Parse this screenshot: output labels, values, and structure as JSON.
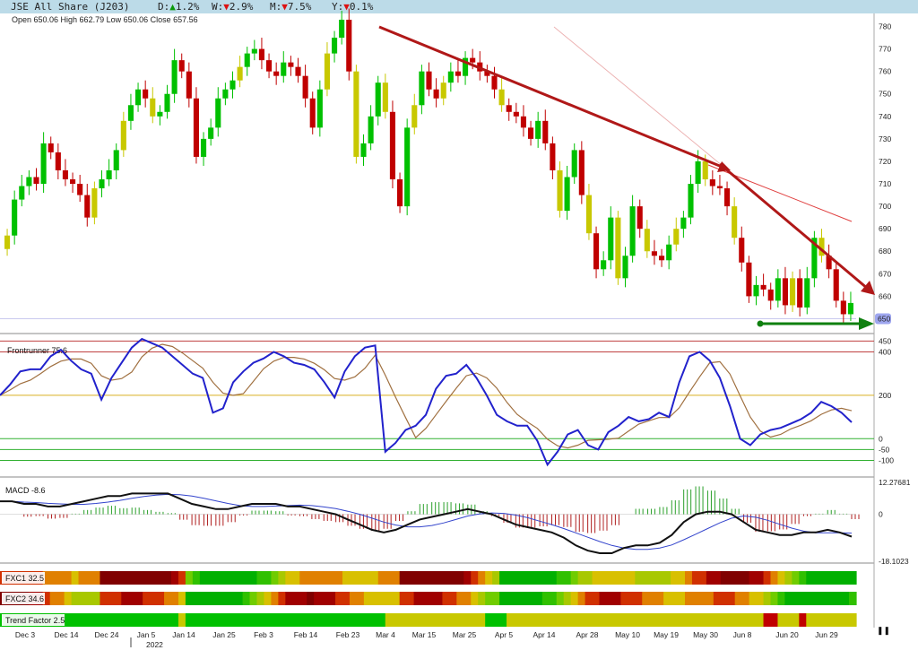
{
  "header": {
    "symbol": "JSE All Share (J203)",
    "day": {
      "label": "D:",
      "arrow": "▲",
      "value": "1.2%"
    },
    "week": {
      "label": "W:",
      "arrow": "▼",
      "value": "2.9%"
    },
    "month": {
      "label": "M:",
      "arrow": "▼",
      "value": "7.5%"
    },
    "year": {
      "label": "Y:",
      "arrow": "▼",
      "value": "0.1%"
    }
  },
  "ohlc": "Open 650.06  High 662.79  Low 650.06  Close 657.56",
  "colors": {
    "up": "#00c000",
    "down": "#c00000",
    "neutral": "#c8c800",
    "trend": "#b01818",
    "support": "#108010",
    "blueline": "#2222cc",
    "brownline": "#a07040"
  },
  "chart_data": [
    {
      "type": "candlestick",
      "title": "JSE All Share (J203)",
      "y_ticks": [
        650,
        660,
        670,
        680,
        690,
        700,
        710,
        720,
        730,
        740,
        750,
        760,
        770,
        780
      ],
      "ylim": [
        645,
        783
      ],
      "current_value_label": "650",
      "x_ticks": [
        "Dec 3",
        "Dec 14",
        "Dec 24",
        "Jan 5",
        "Jan 14",
        "Jan 25",
        "Feb 3",
        "Feb 14",
        "Feb 23",
        "Mar 4",
        "Mar 15",
        "Mar 25",
        "Apr 5",
        "Apr 14",
        "Apr 28",
        "May 10",
        "May 19",
        "May 30",
        "Jun 8",
        "Jun 20",
        "Jun 29"
      ],
      "year_label": "2022",
      "close": [
        687,
        703,
        709,
        713,
        710,
        728,
        724,
        716,
        712,
        710,
        705,
        695,
        708,
        712,
        716,
        725,
        738,
        745,
        752,
        748,
        740,
        742,
        750,
        765,
        760,
        748,
        722,
        730,
        735,
        748,
        752,
        756,
        762,
        768,
        770,
        765,
        760,
        758,
        764,
        762,
        758,
        748,
        735,
        752,
        768,
        775,
        783,
        760,
        722,
        728,
        740,
        755,
        742,
        712,
        700,
        735,
        745,
        760,
        752,
        748,
        755,
        760,
        758,
        766,
        764,
        760,
        758,
        752,
        745,
        742,
        740,
        735,
        730,
        738,
        728,
        716,
        698,
        713,
        725,
        705,
        688,
        672,
        676,
        695,
        668,
        678,
        700,
        690,
        680,
        678,
        676,
        683,
        690,
        695,
        710,
        720,
        712,
        709,
        708,
        700,
        686,
        675,
        660,
        665,
        663,
        658,
        668,
        656,
        668,
        655,
        668,
        686,
        678,
        672,
        658,
        652,
        657
      ],
      "mark": "candles colored green (up), red (down), yellow (neutral); red downtrend arrows; green support arrow at 650"
    },
    {
      "type": "line",
      "title": "Frontrunner 75.6",
      "y_ticks": [
        450,
        400,
        200,
        0,
        -50,
        -100
      ],
      "ylim": [
        -160,
        460
      ],
      "series": [
        {
          "name": "Frontrunner",
          "values": [
            200,
            250,
            310,
            320,
            320,
            380,
            410,
            360,
            320,
            300,
            180,
            280,
            350,
            420,
            460,
            440,
            420,
            380,
            340,
            300,
            280,
            120,
            140,
            260,
            310,
            350,
            370,
            400,
            380,
            350,
            340,
            320,
            260,
            190,
            310,
            380,
            420,
            430,
            -60,
            -20,
            40,
            60,
            110,
            230,
            290,
            300,
            340,
            280,
            200,
            110,
            80,
            60,
            60,
            -10,
            -120,
            -60,
            20,
            40,
            -30,
            -50,
            30,
            60,
            100,
            80,
            90,
            120,
            100,
            260,
            380,
            400,
            360,
            280,
            150,
            0,
            -30,
            20,
            40,
            50,
            70,
            90,
            120,
            170,
            150,
            120,
            75.6
          ]
        }
      ]
    },
    {
      "type": "bar",
      "title": "MACD -8.6",
      "y_ticks_labels": [
        "12.27681",
        "0",
        "-18.1023"
      ],
      "ylim": [
        -18.1023,
        12.27681
      ],
      "series": [
        {
          "name": "MACD",
          "values": [
            5,
            5,
            4,
            4,
            3,
            3,
            4,
            5,
            6,
            7,
            7,
            8,
            8,
            8,
            8,
            6,
            4,
            3,
            2,
            2,
            3,
            4,
            4,
            4,
            3,
            3,
            2,
            1,
            0,
            -2,
            -4,
            -6,
            -7,
            -6,
            -4,
            -2,
            -1,
            0,
            1,
            2,
            1,
            0,
            -2,
            -4,
            -5,
            -6,
            -7,
            -9,
            -12,
            -14,
            -15,
            -15,
            -13,
            -12,
            -12,
            -11,
            -8,
            -3,
            0,
            1,
            1,
            0,
            -3,
            -6,
            -7,
            -8,
            -8,
            -7,
            -7,
            -6,
            -7,
            -8.6
          ]
        }
      ]
    },
    {
      "type": "heatmap",
      "rows": [
        {
          "name": "FXC1 32.5"
        },
        {
          "name": "FXC2 34.6"
        },
        {
          "name": "Trend Factor 2.5"
        }
      ]
    }
  ]
}
